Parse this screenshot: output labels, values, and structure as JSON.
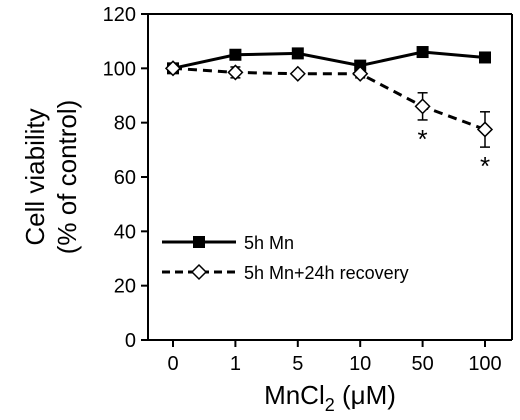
{
  "chart_data": {
    "type": "line",
    "categories": [
      "0",
      "1",
      "5",
      "10",
      "50",
      "100"
    ],
    "xlabel_main": "MnCl",
    "xlabel_sub": "2",
    "xlabel_unit": " (μM)",
    "ylabel_line1": "Cell viability",
    "ylabel_line2": "(% of control)",
    "ylim": [
      0,
      120
    ],
    "yticks": [
      "0",
      "20",
      "40",
      "60",
      "80",
      "100",
      "120"
    ],
    "grid": false,
    "legend_position": "bottom-left",
    "series": [
      {
        "name": "5h Mn",
        "values": [
          100,
          105,
          105.5,
          101,
          106,
          104
        ],
        "errors": [
          1,
          1,
          1,
          1,
          1,
          1
        ],
        "marker": "square-filled",
        "line_style": "solid",
        "color": "#000000"
      },
      {
        "name": "5h Mn+24h recovery",
        "values": [
          100,
          98.5,
          98,
          98,
          86,
          77.5
        ],
        "errors": [
          1.5,
          2,
          1,
          1.5,
          5,
          6.5
        ],
        "marker": "diamond-open",
        "line_style": "dashed",
        "color": "#000000"
      }
    ],
    "annotations": [
      {
        "text": "*",
        "category": "50"
      },
      {
        "text": "*",
        "category": "100"
      }
    ]
  }
}
